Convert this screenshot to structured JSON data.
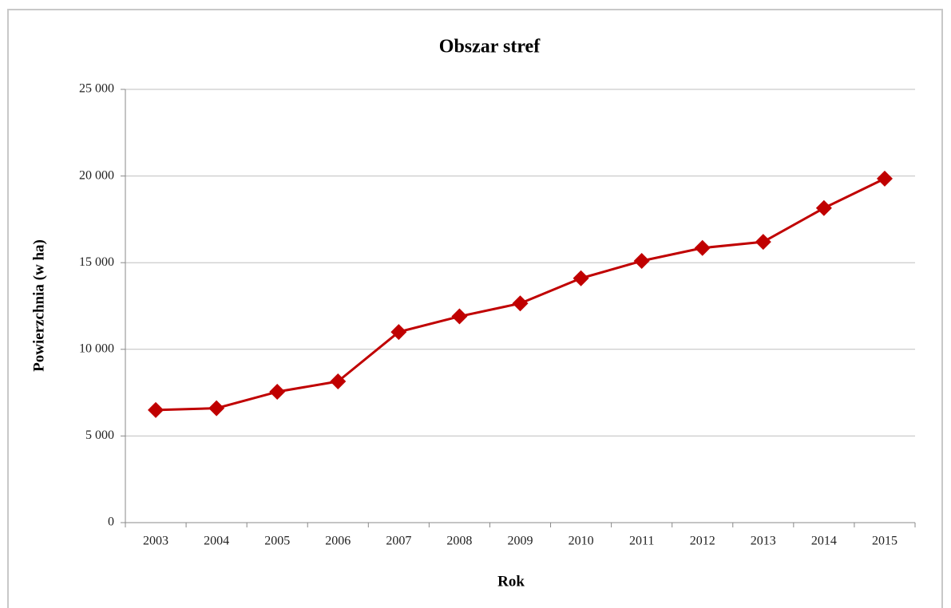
{
  "chart_data": {
    "type": "line",
    "title": "Obszar stref",
    "xlabel": "Rok",
    "ylabel": "Powierzchnia (w ha)",
    "categories": [
      "2003",
      "2004",
      "2005",
      "2006",
      "2007",
      "2008",
      "2009",
      "2010",
      "2011",
      "2012",
      "2013",
      "2014",
      "2015"
    ],
    "series": [
      {
        "name": "Obszar stref",
        "color": "#c00000",
        "values": [
          6500,
          6600,
          7550,
          8150,
          11000,
          11900,
          12650,
          14100,
          15100,
          15850,
          16200,
          18150,
          19850
        ]
      }
    ],
    "ylim": [
      0,
      25000
    ],
    "yticks": [
      0,
      {
        "value": 5000,
        "label": "5 000"
      },
      {
        "value": 10000,
        "label": "10 000"
      },
      {
        "value": 15000,
        "label": "15 000"
      },
      {
        "value": 20000,
        "label": "20 000"
      },
      {
        "value": 25000,
        "label": "25 000"
      }
    ],
    "grid": true,
    "legend": false
  }
}
